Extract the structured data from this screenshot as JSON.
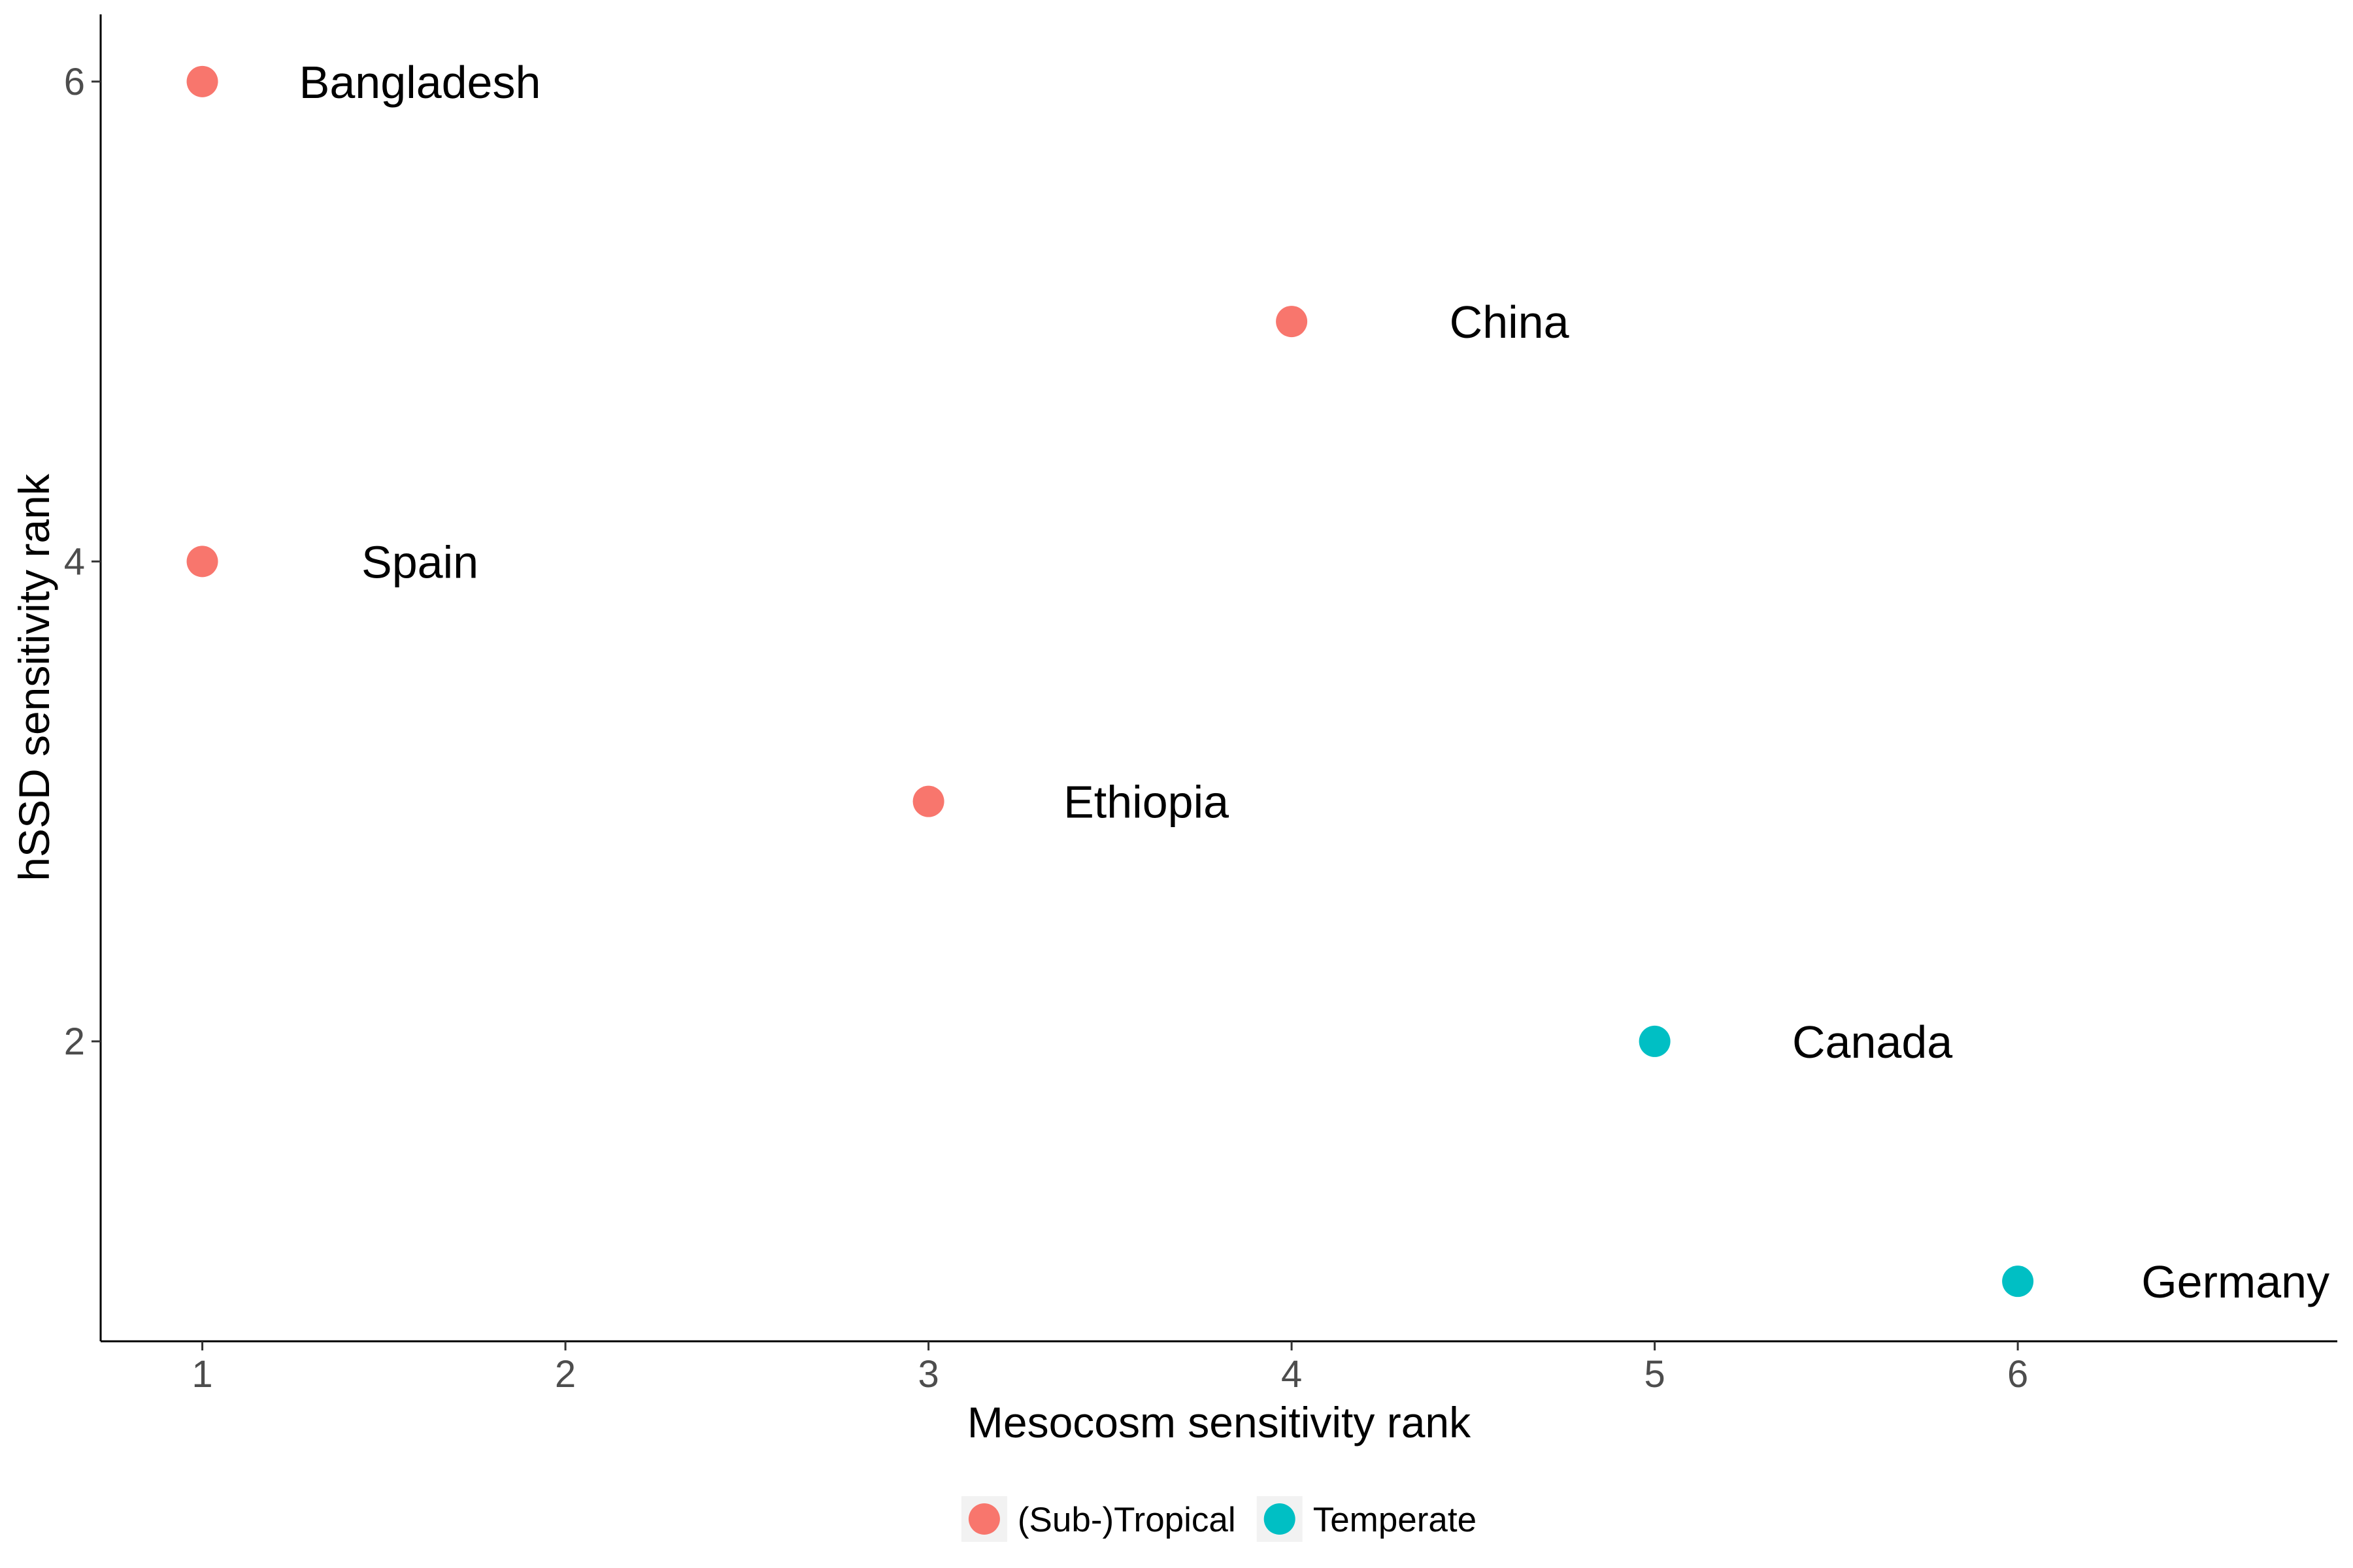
{
  "chart_data": {
    "type": "scatter",
    "xlabel": "Mesocosm sensitivity rank",
    "ylabel": "hSSD sensitivity rank",
    "xlim": [
      0.72,
      6.88
    ],
    "ylim": [
      0.75,
      6.28
    ],
    "x_ticks": [
      1,
      2,
      3,
      4,
      5,
      6
    ],
    "y_ticks": [
      2,
      4,
      6
    ],
    "grid": false,
    "legend_position": "bottom",
    "series": [
      {
        "name": "(Sub-)Tropical",
        "color": "#F8766D",
        "points": [
          {
            "label": "Bangladesh",
            "x": 1,
            "y": 6
          },
          {
            "label": "China",
            "x": 4,
            "y": 5
          },
          {
            "label": "Spain",
            "x": 1,
            "y": 4
          },
          {
            "label": "Ethiopia",
            "x": 3,
            "y": 3
          }
        ]
      },
      {
        "name": "Temperate",
        "color": "#00BFC4",
        "points": [
          {
            "label": "Canada",
            "x": 5,
            "y": 2
          },
          {
            "label": "Germany",
            "x": 6,
            "y": 1
          }
        ]
      }
    ]
  }
}
